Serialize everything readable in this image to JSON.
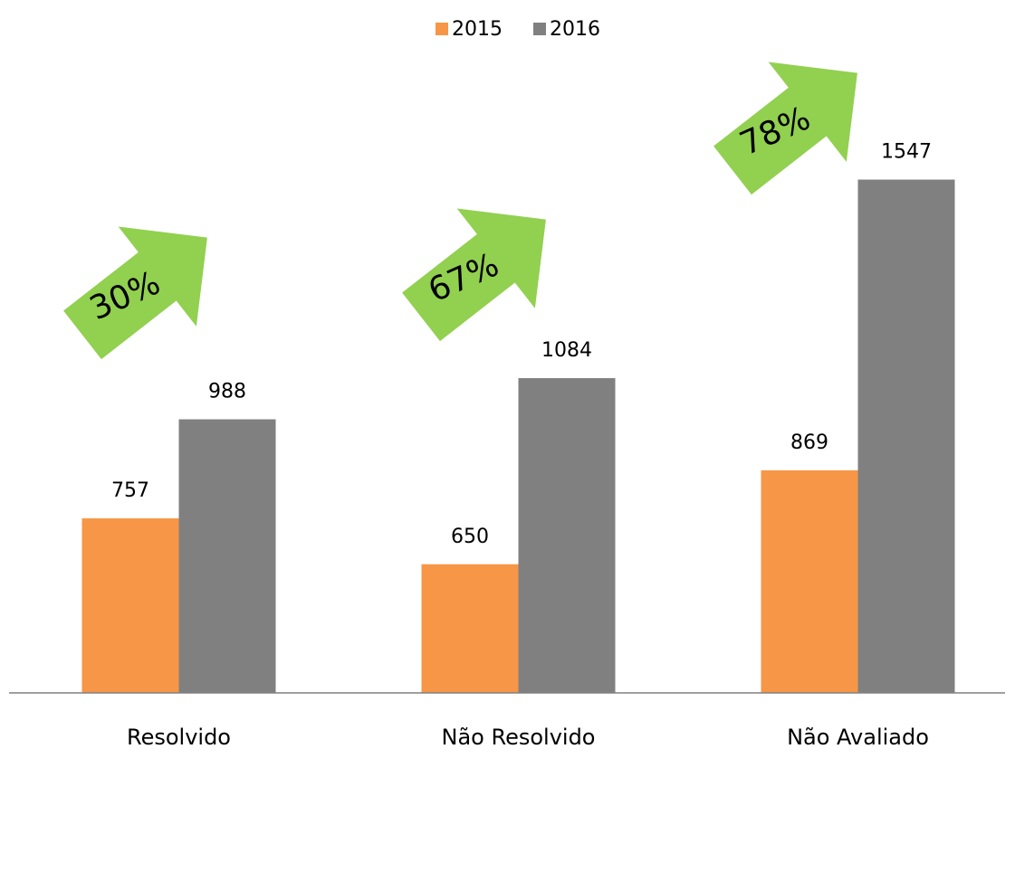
{
  "chart_data": {
    "type": "bar",
    "categories": [
      "Resolvido",
      "Não Resolvido",
      "Não Avaliado"
    ],
    "series": [
      {
        "name": "2015",
        "color": "#f79646",
        "values": [
          757,
          650,
          869
        ]
      },
      {
        "name": "2016",
        "color": "#808080",
        "values": [
          988,
          1084,
          1547
        ]
      }
    ],
    "ylim": [
      350,
      1700
    ],
    "annotations": [
      "30%",
      "67%",
      "78%"
    ],
    "annotation_color": "#92d050"
  }
}
